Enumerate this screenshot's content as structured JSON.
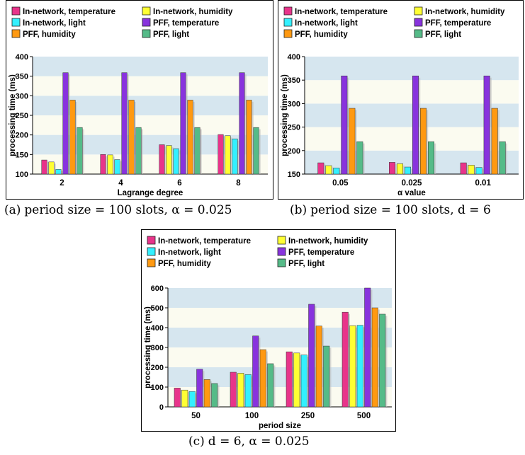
{
  "chart_data": [
    {
      "type": "bar",
      "panel_label": "(a)",
      "caption": "period size = 100 slots, α = 0.025",
      "xlabel": "Lagrange degree",
      "ylabel": "processing time (ms)",
      "categories": [
        "2",
        "4",
        "6",
        "8"
      ],
      "ylim": [
        100,
        400
      ],
      "yticks": [
        100,
        150,
        200,
        250,
        300,
        350,
        400
      ],
      "legend_position": "top",
      "grid": "alternating horizontal bands",
      "series": [
        {
          "name": "In-network, temperature",
          "color": "#e8348a",
          "values": [
            136,
            150,
            175,
            201
          ]
        },
        {
          "name": "In-network, humidity",
          "color": "#ffff33",
          "values": [
            131,
            149,
            173,
            198
          ]
        },
        {
          "name": "In-network, light",
          "color": "#33f0ff",
          "values": [
            112,
            137,
            165,
            190
          ]
        },
        {
          "name": "PFF, temperature",
          "color": "#8833dd",
          "values": [
            359,
            359,
            359,
            359
          ]
        },
        {
          "name": "PFF, humidity",
          "color": "#ff9911",
          "values": [
            289,
            289,
            289,
            289
          ]
        },
        {
          "name": "PFF, light",
          "color": "#55bb88",
          "values": [
            219,
            219,
            219,
            219
          ]
        }
      ]
    },
    {
      "type": "bar",
      "panel_label": "(b)",
      "caption": "period size = 100 slots, d = 6",
      "xlabel": "α value",
      "ylabel": "processing time (ms)",
      "categories": [
        "0.05",
        "0.025",
        "0.01"
      ],
      "ylim": [
        150,
        400
      ],
      "yticks": [
        150,
        200,
        250,
        300,
        350,
        400
      ],
      "legend_position": "top",
      "grid": "alternating horizontal bands",
      "series": [
        {
          "name": "In-network, temperature",
          "color": "#e8348a",
          "values": [
            174,
            175,
            174
          ]
        },
        {
          "name": "In-network, humidity",
          "color": "#ffff33",
          "values": [
            168,
            172,
            169
          ]
        },
        {
          "name": "In-network, light",
          "color": "#33f0ff",
          "values": [
            163,
            165,
            164
          ]
        },
        {
          "name": "PFF, temperature",
          "color": "#8833dd",
          "values": [
            359,
            359,
            359
          ]
        },
        {
          "name": "PFF, humidity",
          "color": "#ff9911",
          "values": [
            290,
            290,
            290
          ]
        },
        {
          "name": "PFF, light",
          "color": "#55bb88",
          "values": [
            219,
            219,
            219
          ]
        }
      ]
    },
    {
      "type": "bar",
      "panel_label": "(c)",
      "caption": "d = 6, α = 0.025",
      "xlabel": "period size",
      "ylabel": "processing time (ms)",
      "categories": [
        "50",
        "100",
        "250",
        "500"
      ],
      "ylim": [
        0,
        600
      ],
      "yticks": [
        0,
        100,
        200,
        300,
        400,
        500,
        600
      ],
      "legend_position": "top",
      "grid": "alternating horizontal bands",
      "series": [
        {
          "name": "In-network, temperature",
          "color": "#e8348a",
          "values": [
            95,
            175,
            278,
            478
          ]
        },
        {
          "name": "In-network, humidity",
          "color": "#ffff33",
          "values": [
            85,
            170,
            272,
            410
          ]
        },
        {
          "name": "In-network, light",
          "color": "#33f0ff",
          "values": [
            78,
            163,
            262,
            412
          ]
        },
        {
          "name": "PFF, temperature",
          "color": "#8833dd",
          "values": [
            190,
            358,
            518,
            600
          ]
        },
        {
          "name": "PFF, humidity",
          "color": "#ff9911",
          "values": [
            138,
            289,
            408,
            500
          ]
        },
        {
          "name": "PFF, light",
          "color": "#55bb88",
          "values": [
            118,
            218,
            307,
            468
          ]
        }
      ]
    }
  ]
}
